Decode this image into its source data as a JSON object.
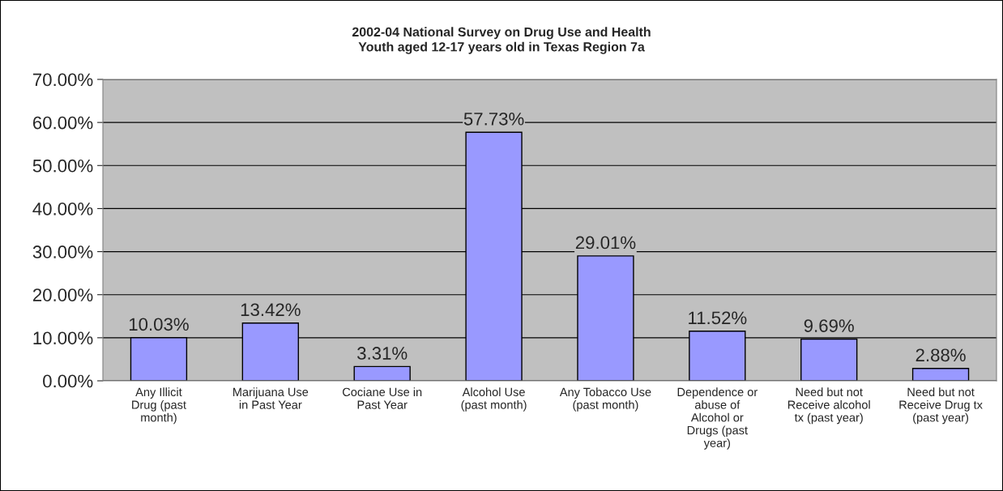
{
  "chart_data": {
    "type": "bar",
    "title": "2002-04 National Survey on Drug Use and Health\nYouth aged 12-17 years old in Texas Region 7a",
    "categories": [
      "Any Illicit Drug (past month)",
      "Marijuana Use in Past Year",
      "Cociane Use in Past Year",
      "Alcohol Use (past month)",
      "Any Tobacco Use (past month)",
      "Dependence or abuse of Alcohol or Drugs (past year)",
      "Need but not Receive alcohol tx (past year)",
      "Need but not Receive Drug tx (past year)"
    ],
    "values": [
      10.03,
      13.42,
      3.31,
      57.73,
      29.01,
      11.52,
      9.69,
      2.88
    ],
    "value_labels": [
      "10.03%",
      "13.42%",
      "3.31%",
      "57.73%",
      "29.01%",
      "11.52%",
      "9.69%",
      "2.88%"
    ],
    "color": "#9999ff",
    "ylim": [
      0,
      70
    ],
    "yticks": [
      {
        "value": 0,
        "label": "0.00%"
      },
      {
        "value": 10,
        "label": "10.00%"
      },
      {
        "value": 20,
        "label": "20.00%"
      },
      {
        "value": 30,
        "label": "30.00%"
      },
      {
        "value": 40,
        "label": "40.00%"
      },
      {
        "value": 50,
        "label": "50.00%"
      },
      {
        "value": 60,
        "label": "60.00%"
      },
      {
        "value": 70,
        "label": "70.00%"
      }
    ],
    "grid": "y",
    "legend": false
  }
}
